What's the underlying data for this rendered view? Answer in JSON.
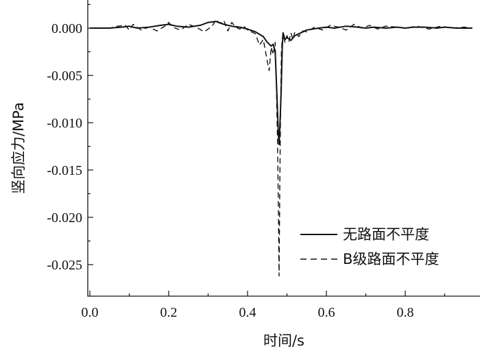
{
  "chart_data": {
    "type": "line",
    "title": "",
    "xlabel": "时间/s",
    "ylabel": "竖向应力/MPa",
    "xlim": [
      0.0,
      0.97
    ],
    "ylim": [
      -0.0285,
      0.003
    ],
    "x_ticks": [
      "0.0",
      "0.2",
      "0.4",
      "0.6",
      "0.8"
    ],
    "x_tick_values": [
      0.0,
      0.2,
      0.4,
      0.6,
      0.8
    ],
    "y_ticks": [
      "0.000",
      "-0.005",
      "-0.010",
      "-0.015",
      "-0.020",
      "-0.025"
    ],
    "y_tick_values": [
      0.0,
      -0.005,
      -0.01,
      -0.015,
      -0.02,
      -0.025
    ],
    "grid": false,
    "legend_position": "bottom-right",
    "series": [
      {
        "name": "无路面不平度",
        "line_style": "solid",
        "color": "#111111",
        "x": [
          0.0,
          0.05,
          0.08,
          0.1,
          0.12,
          0.15,
          0.18,
          0.2,
          0.22,
          0.25,
          0.28,
          0.3,
          0.32,
          0.34,
          0.36,
          0.38,
          0.4,
          0.42,
          0.44,
          0.45,
          0.46,
          0.465,
          0.47,
          0.475,
          0.478,
          0.48,
          0.482,
          0.485,
          0.488,
          0.49,
          0.495,
          0.5,
          0.51,
          0.52,
          0.53,
          0.55,
          0.58,
          0.6,
          0.62,
          0.65,
          0.68,
          0.7,
          0.72,
          0.75,
          0.78,
          0.8,
          0.82,
          0.85,
          0.88,
          0.9,
          0.93,
          0.97
        ],
        "y": [
          0.0,
          0.0,
          0.0001,
          0.0002,
          0.0,
          0.0001,
          0.0003,
          0.0004,
          0.0002,
          0.0001,
          0.0003,
          0.0006,
          0.0007,
          0.0004,
          0.0002,
          0.0001,
          -0.0001,
          -0.0004,
          -0.0009,
          -0.0015,
          -0.0019,
          -0.0017,
          -0.0025,
          -0.0075,
          -0.011,
          -0.0123,
          -0.0105,
          -0.007,
          -0.002,
          -0.0005,
          -0.0012,
          -0.001,
          -0.0013,
          -0.0008,
          -0.0006,
          -0.0002,
          0.0,
          0.0001,
          0.0,
          0.0002,
          0.0001,
          0.0,
          0.0001,
          0.0,
          0.0001,
          0.0,
          0.0001,
          0.0001,
          0.0,
          0.0001,
          0.0,
          0.0
        ]
      },
      {
        "name": "B级路面不平度",
        "line_style": "dashed",
        "color": "#111111",
        "x": [
          0.0,
          0.05,
          0.07,
          0.09,
          0.1,
          0.11,
          0.13,
          0.15,
          0.17,
          0.19,
          0.2,
          0.21,
          0.23,
          0.25,
          0.27,
          0.29,
          0.31,
          0.32,
          0.33,
          0.34,
          0.35,
          0.36,
          0.37,
          0.38,
          0.39,
          0.4,
          0.42,
          0.43,
          0.44,
          0.45,
          0.455,
          0.46,
          0.465,
          0.47,
          0.473,
          0.476,
          0.478,
          0.48,
          0.482,
          0.484,
          0.486,
          0.488,
          0.49,
          0.495,
          0.5,
          0.505,
          0.51,
          0.515,
          0.52,
          0.53,
          0.54,
          0.55,
          0.57,
          0.59,
          0.61,
          0.63,
          0.65,
          0.67,
          0.69,
          0.71,
          0.73,
          0.75,
          0.78,
          0.8,
          0.83,
          0.86,
          0.89,
          0.92,
          0.95,
          0.97
        ],
        "y": [
          0.0,
          0.0,
          0.0002,
          0.0003,
          -0.0002,
          0.0004,
          -0.0002,
          0.0001,
          -0.0003,
          0.0002,
          0.0006,
          0.0001,
          -0.0002,
          0.0004,
          0.0001,
          -0.0004,
          0.0002,
          0.0009,
          0.0005,
          0.0008,
          -0.0003,
          0.0006,
          0.0001,
          -0.0001,
          0.0002,
          -0.0002,
          -0.0006,
          -0.0018,
          -0.0012,
          -0.0035,
          -0.0045,
          -0.002,
          -0.0028,
          -0.0015,
          -0.006,
          -0.012,
          -0.018,
          -0.0262,
          -0.016,
          -0.008,
          -0.0025,
          -0.0012,
          -0.0006,
          -0.0015,
          -0.0008,
          -0.0014,
          -0.0005,
          -0.0012,
          -0.0004,
          -0.0009,
          -0.0003,
          -0.0004,
          0.0001,
          -0.0002,
          0.0003,
          0.0001,
          -0.0002,
          0.0004,
          0.0,
          0.0003,
          -0.0001,
          0.0002,
          0.0001,
          0.0,
          0.0002,
          -0.0001,
          0.0002,
          0.0,
          0.0001,
          0.0
        ]
      }
    ]
  }
}
